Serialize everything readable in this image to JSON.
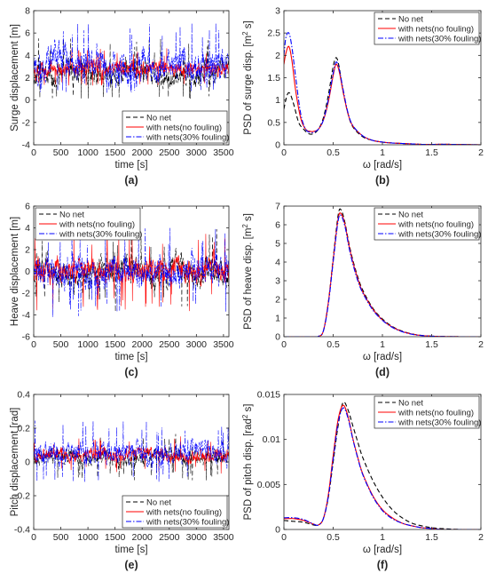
{
  "panels": [
    {
      "type": "line",
      "caption": "(a)",
      "xlabel": "time [s]",
      "ylabel": "Surge displacement [m]",
      "xlim": [
        0,
        3600
      ],
      "ylim": [
        -4,
        8
      ],
      "xticks": [
        0,
        500,
        1000,
        1500,
        2000,
        2500,
        3000,
        3500
      ],
      "yticks": [
        -4,
        -2,
        0,
        2,
        4,
        6,
        8
      ],
      "legend": "bottom-right",
      "grid": false,
      "box": true,
      "series": [
        {
          "name": "No net",
          "color": "#000000",
          "dash": "dashed",
          "mean": 2.3,
          "amplitude": 1.2,
          "min": 0.1,
          "max": 5.6
        },
        {
          "name": "with nets(no fouling)",
          "color": "#ff0000",
          "dash": "solid",
          "mean": 2.8,
          "amplitude": 0.7,
          "min": 1.3,
          "max": 4.7
        },
        {
          "name": "with nets(30% fouling)",
          "color": "#0000ff",
          "dash": "dashdot",
          "mean": 3.0,
          "amplitude": 1.6,
          "min": 0.6,
          "max": 7.0
        }
      ]
    },
    {
      "type": "line",
      "caption": "(b)",
      "xlabel": "ω [rad/s]",
      "ylabel_parts": [
        "PSD of surge disp. [m",
        "2",
        " s]"
      ],
      "xlim": [
        0,
        2
      ],
      "ylim": [
        0,
        3
      ],
      "xticks": [
        0,
        0.5,
        1,
        1.5,
        2
      ],
      "yticks": [
        0,
        0.5,
        1,
        1.5,
        2,
        2.5,
        3
      ],
      "legend": "top-right",
      "grid": false,
      "box": true,
      "series": [
        {
          "name": "No net",
          "color": "#000000",
          "dash": "dashed",
          "x": [
            0,
            0.03,
            0.06,
            0.1,
            0.15,
            0.2,
            0.25,
            0.3,
            0.35,
            0.4,
            0.45,
            0.5,
            0.53,
            0.56,
            0.6,
            0.65,
            0.7,
            0.8,
            0.9,
            1.0,
            1.1,
            1.2,
            1.3,
            1.4,
            1.5,
            1.7,
            2.0
          ],
          "y": [
            0.8,
            1.1,
            1.15,
            0.9,
            0.5,
            0.35,
            0.25,
            0.25,
            0.35,
            0.6,
            1.1,
            1.75,
            1.95,
            1.75,
            1.2,
            0.7,
            0.4,
            0.18,
            0.1,
            0.06,
            0.04,
            0.03,
            0.02,
            0.01,
            0.01,
            0.01,
            0
          ]
        },
        {
          "name": "with nets(no fouling)",
          "color": "#ff0000",
          "dash": "solid",
          "x": [
            0,
            0.02,
            0.05,
            0.08,
            0.12,
            0.17,
            0.22,
            0.27,
            0.3,
            0.35,
            0.4,
            0.45,
            0.5,
            0.53,
            0.56,
            0.6,
            0.65,
            0.7,
            0.8,
            0.9,
            1.0,
            1.1,
            1.2,
            1.3,
            1.4,
            1.5,
            1.7,
            2.0
          ],
          "y": [
            1.8,
            2.05,
            2.2,
            1.9,
            1.2,
            0.6,
            0.35,
            0.3,
            0.3,
            0.35,
            0.55,
            0.95,
            1.55,
            1.8,
            1.65,
            1.2,
            0.7,
            0.42,
            0.2,
            0.1,
            0.06,
            0.04,
            0.03,
            0.02,
            0.01,
            0.01,
            0.01,
            0
          ]
        },
        {
          "name": "with nets(30% fouling)",
          "color": "#0000ff",
          "dash": "dashdot",
          "x": [
            0,
            0.02,
            0.05,
            0.08,
            0.12,
            0.17,
            0.22,
            0.27,
            0.3,
            0.35,
            0.4,
            0.45,
            0.5,
            0.53,
            0.56,
            0.6,
            0.65,
            0.7,
            0.8,
            0.9,
            1.0,
            1.1,
            1.2,
            1.3,
            1.4,
            1.5,
            1.7,
            2.0
          ],
          "y": [
            2.0,
            2.4,
            2.5,
            2.2,
            1.5,
            0.7,
            0.35,
            0.28,
            0.28,
            0.35,
            0.55,
            1.0,
            1.6,
            1.85,
            1.7,
            1.25,
            0.72,
            0.43,
            0.2,
            0.1,
            0.06,
            0.04,
            0.03,
            0.02,
            0.01,
            0.01,
            0.01,
            0
          ]
        }
      ]
    },
    {
      "type": "line",
      "caption": "(c)",
      "xlabel": "time [s]",
      "ylabel": "Heave displacement [m]",
      "xlim": [
        0,
        3600
      ],
      "ylim": [
        -6,
        6
      ],
      "xticks": [
        0,
        500,
        1000,
        1500,
        2000,
        2500,
        3000,
        3500
      ],
      "yticks": [
        -6,
        -4,
        -2,
        0,
        2,
        4,
        6
      ],
      "legend": "top-left",
      "grid": false,
      "box": true,
      "series": [
        {
          "name": "No net",
          "color": "#000000",
          "dash": "dashed",
          "mean": 0,
          "amplitude": 1.4,
          "min": -4.2,
          "max": 4.0
        },
        {
          "name": "with nets(no fouling)",
          "color": "#ff0000",
          "dash": "solid",
          "mean": 0,
          "amplitude": 1.3,
          "min": -3.8,
          "max": 3.8
        },
        {
          "name": "with nets(30% fouling)",
          "color": "#0000ff",
          "dash": "dashdot",
          "mean": 0,
          "amplitude": 1.5,
          "min": -4.8,
          "max": 4.2
        }
      ]
    },
    {
      "type": "line",
      "caption": "(d)",
      "xlabel": "ω [rad/s]",
      "ylabel_parts": [
        "PSD of heave disp. [m",
        "2",
        " s]"
      ],
      "xlim": [
        0,
        2
      ],
      "ylim": [
        0,
        7
      ],
      "xticks": [
        0,
        0.5,
        1,
        1.5,
        2
      ],
      "yticks": [
        0,
        1,
        2,
        3,
        4,
        5,
        6,
        7
      ],
      "legend": "top-right",
      "grid": false,
      "box": true,
      "series": [
        {
          "name": "No net",
          "color": "#000000",
          "dash": "dashed",
          "x": [
            0,
            0.3,
            0.35,
            0.4,
            0.45,
            0.5,
            0.55,
            0.58,
            0.62,
            0.66,
            0.7,
            0.75,
            0.8,
            0.9,
            1.0,
            1.1,
            1.2,
            1.3,
            1.4,
            1.5,
            1.6,
            1.8,
            2.0
          ],
          "y": [
            0,
            0,
            0.02,
            0.3,
            1.8,
            4.2,
            6.5,
            6.8,
            6.1,
            5.0,
            4.1,
            3.2,
            2.5,
            1.55,
            0.95,
            0.55,
            0.3,
            0.15,
            0.07,
            0.03,
            0.01,
            0,
            0
          ]
        },
        {
          "name": "with nets(no fouling)",
          "color": "#ff0000",
          "dash": "solid",
          "x": [
            0,
            0.3,
            0.35,
            0.4,
            0.45,
            0.5,
            0.55,
            0.58,
            0.62,
            0.66,
            0.7,
            0.75,
            0.8,
            0.9,
            1.0,
            1.1,
            1.2,
            1.3,
            1.4,
            1.5,
            1.6,
            1.8,
            2.0
          ],
          "y": [
            0,
            0,
            0.02,
            0.3,
            1.8,
            4.1,
            6.3,
            6.6,
            6.0,
            4.9,
            4.0,
            3.1,
            2.4,
            1.5,
            0.9,
            0.52,
            0.28,
            0.14,
            0.06,
            0.03,
            0.01,
            0,
            0
          ]
        },
        {
          "name": "with nets(30% fouling)",
          "color": "#0000ff",
          "dash": "dashdot",
          "x": [
            0,
            0.3,
            0.35,
            0.4,
            0.45,
            0.5,
            0.55,
            0.58,
            0.62,
            0.66,
            0.7,
            0.75,
            0.8,
            0.9,
            1.0,
            1.1,
            1.2,
            1.3,
            1.4,
            1.5,
            1.6,
            1.8,
            2.0
          ],
          "y": [
            0,
            0,
            0.02,
            0.3,
            1.7,
            4.0,
            6.2,
            6.5,
            5.9,
            4.8,
            3.9,
            3.0,
            2.35,
            1.45,
            0.88,
            0.5,
            0.27,
            0.13,
            0.06,
            0.03,
            0.01,
            0,
            0
          ]
        }
      ]
    },
    {
      "type": "line",
      "caption": "(e)",
      "xlabel": "time [s]",
      "ylabel": "Pitch displacement [rad]",
      "xlim": [
        0,
        3600
      ],
      "ylim": [
        -0.4,
        0.4
      ],
      "xticks": [
        0,
        500,
        1000,
        1500,
        2000,
        2500,
        3000,
        3500
      ],
      "yticks": [
        -0.4,
        -0.2,
        0,
        0.2,
        0.4
      ],
      "legend": "bottom-right",
      "grid": false,
      "box": true,
      "series": [
        {
          "name": "No net",
          "color": "#000000",
          "dash": "dashed",
          "mean": 0.03,
          "amplitude": 0.05,
          "min": -0.12,
          "max": 0.2
        },
        {
          "name": "with nets(no fouling)",
          "color": "#ff0000",
          "dash": "solid",
          "mean": 0.04,
          "amplitude": 0.04,
          "min": -0.08,
          "max": 0.16
        },
        {
          "name": "with nets(30% fouling)",
          "color": "#0000ff",
          "dash": "dashdot",
          "mean": 0.05,
          "amplitude": 0.07,
          "min": -0.12,
          "max": 0.3
        }
      ]
    },
    {
      "type": "line",
      "caption": "(f)",
      "xlabel": "ω [rad/s]",
      "ylabel_parts": [
        "PSD of pitch disp. [rad",
        "2",
        " s]"
      ],
      "xlim": [
        0,
        2
      ],
      "ylim": [
        0,
        0.015
      ],
      "xticks": [
        0,
        0.5,
        1,
        1.5,
        2
      ],
      "yticks": [
        0,
        0.005,
        0.01,
        0.015
      ],
      "legend": "top-right",
      "grid": false,
      "box": true,
      "series": [
        {
          "name": "No net",
          "color": "#000000",
          "dash": "dashed",
          "x": [
            0,
            0.1,
            0.2,
            0.3,
            0.35,
            0.4,
            0.45,
            0.5,
            0.55,
            0.6,
            0.65,
            0.7,
            0.75,
            0.8,
            0.9,
            1.0,
            1.1,
            1.2,
            1.3,
            1.4,
            1.5,
            1.6,
            1.8,
            2.0
          ],
          "y": [
            0.001,
            0.0009,
            0.0008,
            0.0005,
            0.0005,
            0.0012,
            0.0035,
            0.0075,
            0.0115,
            0.0141,
            0.0133,
            0.0115,
            0.0097,
            0.008,
            0.0055,
            0.0036,
            0.0022,
            0.0013,
            0.0007,
            0.0004,
            0.0002,
            0.0001,
            0,
            0
          ]
        },
        {
          "name": "with nets(no fouling)",
          "color": "#ff0000",
          "dash": "solid",
          "x": [
            0,
            0.1,
            0.2,
            0.3,
            0.35,
            0.4,
            0.45,
            0.5,
            0.55,
            0.6,
            0.65,
            0.7,
            0.75,
            0.8,
            0.9,
            1.0,
            1.1,
            1.2,
            1.3,
            1.4,
            1.5,
            1.6,
            1.8,
            2.0
          ],
          "y": [
            0.0012,
            0.0012,
            0.001,
            0.0006,
            0.0005,
            0.0012,
            0.0038,
            0.0082,
            0.0122,
            0.0138,
            0.0126,
            0.0101,
            0.008,
            0.0062,
            0.0038,
            0.0022,
            0.0013,
            0.0007,
            0.0004,
            0.0002,
            0.0001,
            0,
            0,
            0
          ]
        },
        {
          "name": "with nets(30% fouling)",
          "color": "#0000ff",
          "dash": "dashdot",
          "x": [
            0,
            0.1,
            0.2,
            0.3,
            0.35,
            0.4,
            0.45,
            0.5,
            0.55,
            0.6,
            0.65,
            0.7,
            0.75,
            0.8,
            0.9,
            1.0,
            1.1,
            1.2,
            1.3,
            1.4,
            1.5,
            1.6,
            1.8,
            2.0
          ],
          "y": [
            0.0013,
            0.0013,
            0.0011,
            0.0006,
            0.0005,
            0.0012,
            0.0036,
            0.0078,
            0.0118,
            0.0135,
            0.0124,
            0.01,
            0.0079,
            0.0061,
            0.0037,
            0.0021,
            0.0012,
            0.0007,
            0.0004,
            0.0002,
            0.0001,
            0,
            0,
            0
          ]
        }
      ]
    }
  ]
}
